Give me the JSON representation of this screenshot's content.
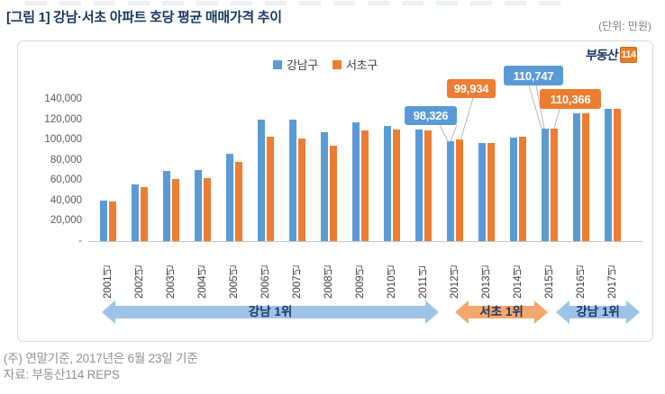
{
  "page": {
    "title": "[그림 1] 강남·서초 아파트 호당 평균 매매가격 추이",
    "unit_label": "(단위: 만원)",
    "note_line1": "(주) 연말기준, 2017년은 6월 23일 기준",
    "note_line2": "자료: 부동산114 REPS"
  },
  "logo": {
    "text": "부동산",
    "badge": "114"
  },
  "colors": {
    "gangnam_blue": "#5B9BD5",
    "seocho_orange": "#ED7D31",
    "arrow_blue": "#9DC3E6",
    "arrow_orange": "#F4A76C",
    "navy_text": "#1F3864"
  },
  "chart_data": {
    "type": "bar",
    "title": "강남·서초 아파트 호당 평균 매매가격 추이",
    "unit": "만원",
    "categories": [
      "2001년",
      "2002년",
      "2003년",
      "2004년",
      "2005년",
      "2006년",
      "2007년",
      "2008년",
      "2009년",
      "2010년",
      "2011년",
      "2012년",
      "2013년",
      "2014년",
      "2015년",
      "2016년",
      "2017년"
    ],
    "series": [
      {
        "name": "강남구",
        "color": "#5B9BD5",
        "values": [
          40000,
          56000,
          69000,
          70000,
          86000,
          120000,
          120000,
          107000,
          117000,
          113000,
          110000,
          98326,
          97000,
          102000,
          110747,
          126000,
          130000
        ]
      },
      {
        "name": "서초구",
        "color": "#ED7D31",
        "values": [
          39000,
          53000,
          61000,
          62000,
          78000,
          103000,
          101000,
          94000,
          109000,
          110000,
          109000,
          99934,
          97000,
          103000,
          110366,
          126000,
          130000
        ]
      }
    ],
    "ylim": [
      0,
      140000
    ],
    "yticks": [
      {
        "label": "140,000",
        "value": 140000
      },
      {
        "label": "120,000",
        "value": 120000
      },
      {
        "label": "100,000",
        "value": 100000
      },
      {
        "label": "80,000",
        "value": 80000
      },
      {
        "label": "60,000",
        "value": 60000
      },
      {
        "label": "40,000",
        "value": 40000
      },
      {
        "label": "20,000",
        "value": 20000
      },
      {
        "label": "-",
        "value": 0
      }
    ],
    "grid": false,
    "legend_position": "top-center",
    "callouts": [
      {
        "text": "98,326",
        "series": "강남구",
        "category": "2012년",
        "color": "#5B9BD5"
      },
      {
        "text": "99,934",
        "series": "서초구",
        "category": "2012년",
        "color": "#ED7D31"
      },
      {
        "text": "110,747",
        "series": "강남구",
        "category": "2015년",
        "color": "#5B9BD5"
      },
      {
        "text": "110,366",
        "series": "서초구",
        "category": "2015년",
        "color": "#ED7D31"
      }
    ],
    "rank_arrows": [
      {
        "label": "강남 1위",
        "from": "2001년",
        "to": "2011년",
        "color": "#9DC3E6"
      },
      {
        "label": "서초 1위",
        "from": "2012년",
        "to": "2014년",
        "color": "#F4A76C"
      },
      {
        "label": "강남 1위",
        "from": "2015년",
        "to": "2017년",
        "color": "#9DC3E6"
      }
    ]
  }
}
